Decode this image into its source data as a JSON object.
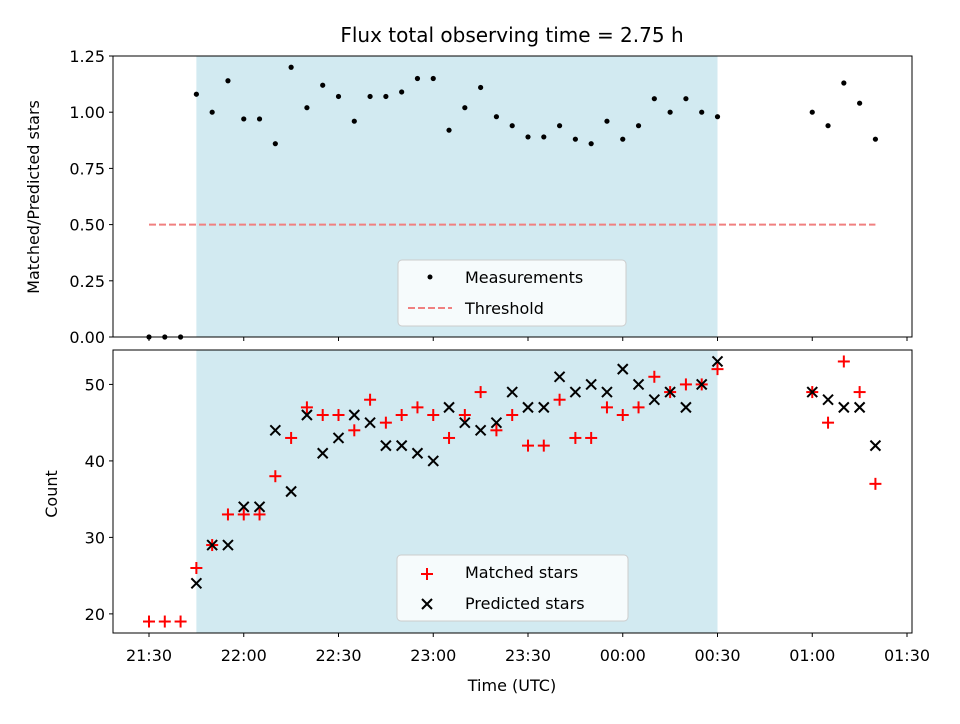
{
  "chart_data": [
    {
      "type": "scatter",
      "title": "Flux total observing time = 2.75 h",
      "xlabel": "",
      "ylabel": "Matched/Predicted stars",
      "ylim": [
        0,
        1.25
      ],
      "yticks": [
        "0.00",
        "0.25",
        "0.50",
        "0.75",
        "1.00",
        "1.25"
      ],
      "shaded_interval": [
        "21:45",
        "00:30"
      ],
      "shade_color": "#add8e6",
      "threshold": {
        "name": "Threshold",
        "y": 0.5,
        "x_range": [
          "21:30",
          "01:20"
        ],
        "color": "#f08080"
      },
      "series": [
        {
          "name": "Measurements",
          "color": "#000000",
          "points": [
            [
              "21:30",
              0.0
            ],
            [
              "21:35",
              0.0
            ],
            [
              "21:40",
              0.0
            ],
            [
              "21:45",
              1.08
            ],
            [
              "21:50",
              1.0
            ],
            [
              "21:55",
              1.14
            ],
            [
              "22:00",
              0.97
            ],
            [
              "22:05",
              0.97
            ],
            [
              "22:10",
              0.86
            ],
            [
              "22:15",
              1.2
            ],
            [
              "22:20",
              1.02
            ],
            [
              "22:25",
              1.12
            ],
            [
              "22:30",
              1.07
            ],
            [
              "22:35",
              0.96
            ],
            [
              "22:40",
              1.07
            ],
            [
              "22:45",
              1.07
            ],
            [
              "22:50",
              1.09
            ],
            [
              "22:55",
              1.15
            ],
            [
              "23:00",
              1.15
            ],
            [
              "23:05",
              0.92
            ],
            [
              "23:10",
              1.02
            ],
            [
              "23:15",
              1.11
            ],
            [
              "23:20",
              0.98
            ],
            [
              "23:25",
              0.94
            ],
            [
              "23:30",
              0.89
            ],
            [
              "23:35",
              0.89
            ],
            [
              "23:40",
              0.94
            ],
            [
              "23:45",
              0.88
            ],
            [
              "23:50",
              0.86
            ],
            [
              "23:55",
              0.96
            ],
            [
              "00:00",
              0.88
            ],
            [
              "00:05",
              0.94
            ],
            [
              "00:10",
              1.06
            ],
            [
              "00:15",
              1.0
            ],
            [
              "00:20",
              1.06
            ],
            [
              "00:25",
              1.0
            ],
            [
              "00:30",
              0.98
            ],
            [
              "01:00",
              1.0
            ],
            [
              "01:05",
              0.94
            ],
            [
              "01:10",
              1.13
            ],
            [
              "01:15",
              1.04
            ],
            [
              "01:20",
              0.88
            ]
          ]
        }
      ],
      "legend": {
        "position": "bottom-center"
      }
    },
    {
      "type": "scatter",
      "title": "",
      "xlabel": "Time (UTC)",
      "ylabel": "Count",
      "ylim": [
        17.5,
        54.5
      ],
      "yticks": [
        "20",
        "30",
        "40",
        "50"
      ],
      "xticks": [
        "21:30",
        "22:00",
        "22:30",
        "23:00",
        "23:30",
        "00:00",
        "00:30",
        "01:00",
        "01:30"
      ],
      "shaded_interval": [
        "21:45",
        "00:30"
      ],
      "shade_color": "#add8e6",
      "series": [
        {
          "name": "Matched stars",
          "marker": "+",
          "color": "#ff0000",
          "points": [
            [
              "21:30",
              19
            ],
            [
              "21:35",
              19
            ],
            [
              "21:40",
              19
            ],
            [
              "21:45",
              26
            ],
            [
              "21:50",
              29
            ],
            [
              "21:55",
              33
            ],
            [
              "22:00",
              33
            ],
            [
              "22:05",
              33
            ],
            [
              "22:10",
              38
            ],
            [
              "22:15",
              43
            ],
            [
              "22:20",
              47
            ],
            [
              "22:25",
              46
            ],
            [
              "22:30",
              46
            ],
            [
              "22:35",
              44
            ],
            [
              "22:40",
              48
            ],
            [
              "22:45",
              45
            ],
            [
              "22:50",
              46
            ],
            [
              "22:55",
              47
            ],
            [
              "23:00",
              46
            ],
            [
              "23:05",
              43
            ],
            [
              "23:10",
              46
            ],
            [
              "23:15",
              49
            ],
            [
              "23:20",
              44
            ],
            [
              "23:25",
              46
            ],
            [
              "23:30",
              42
            ],
            [
              "23:35",
              42
            ],
            [
              "23:40",
              48
            ],
            [
              "23:45",
              43
            ],
            [
              "23:50",
              43
            ],
            [
              "23:55",
              47
            ],
            [
              "00:00",
              46
            ],
            [
              "00:05",
              47
            ],
            [
              "00:10",
              51
            ],
            [
              "00:15",
              49
            ],
            [
              "00:20",
              50
            ],
            [
              "00:25",
              50
            ],
            [
              "00:30",
              52
            ],
            [
              "01:00",
              49
            ],
            [
              "01:05",
              45
            ],
            [
              "01:10",
              53
            ],
            [
              "01:15",
              49
            ],
            [
              "01:20",
              37
            ]
          ]
        },
        {
          "name": "Predicted stars",
          "marker": "x",
          "color": "#000000",
          "points": [
            [
              "21:45",
              24
            ],
            [
              "21:50",
              29
            ],
            [
              "21:55",
              29
            ],
            [
              "22:00",
              34
            ],
            [
              "22:05",
              34
            ],
            [
              "22:10",
              44
            ],
            [
              "22:15",
              36
            ],
            [
              "22:20",
              46
            ],
            [
              "22:25",
              41
            ],
            [
              "22:30",
              43
            ],
            [
              "22:35",
              46
            ],
            [
              "22:40",
              45
            ],
            [
              "22:45",
              42
            ],
            [
              "22:50",
              42
            ],
            [
              "22:55",
              41
            ],
            [
              "23:00",
              40
            ],
            [
              "23:05",
              47
            ],
            [
              "23:10",
              45
            ],
            [
              "23:15",
              44
            ],
            [
              "23:20",
              45
            ],
            [
              "23:25",
              49
            ],
            [
              "23:30",
              47
            ],
            [
              "23:35",
              47
            ],
            [
              "23:40",
              51
            ],
            [
              "23:45",
              49
            ],
            [
              "23:50",
              50
            ],
            [
              "23:55",
              49
            ],
            [
              "00:00",
              52
            ],
            [
              "00:05",
              50
            ],
            [
              "00:10",
              48
            ],
            [
              "00:15",
              49
            ],
            [
              "00:20",
              47
            ],
            [
              "00:25",
              50
            ],
            [
              "00:30",
              53
            ],
            [
              "01:00",
              49
            ],
            [
              "01:05",
              48
            ],
            [
              "01:10",
              47
            ],
            [
              "01:15",
              47
            ],
            [
              "01:20",
              42
            ]
          ]
        }
      ],
      "legend": {
        "position": "bottom-center"
      }
    }
  ]
}
